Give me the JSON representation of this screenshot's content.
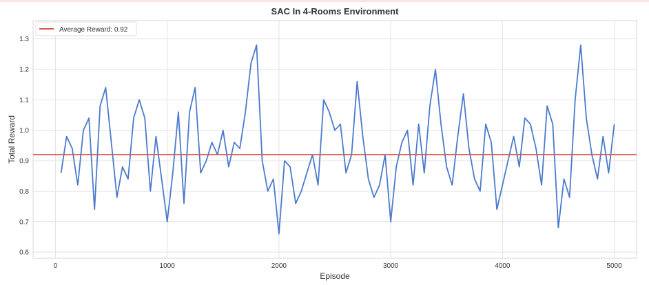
{
  "chart_data": {
    "type": "line",
    "title": "SAC In 4-Rooms Environment",
    "xlabel": "Episode",
    "ylabel": "Total Reward",
    "xlim": [
      -200,
      5200
    ],
    "ylim": [
      0.58,
      1.36
    ],
    "xticks": [
      0,
      1000,
      2000,
      3000,
      4000,
      5000
    ],
    "yticks": [
      0.6,
      0.7,
      0.8,
      0.9,
      1.0,
      1.1,
      1.2,
      1.3
    ],
    "grid": true,
    "legend_position": "top-left",
    "average_line": {
      "label": "Average Reward: 0.92",
      "value": 0.92,
      "color": "#d9534f"
    },
    "series": [
      {
        "color": "#4a7acd",
        "x": [
          50,
          100,
          150,
          200,
          250,
          300,
          350,
          400,
          450,
          500,
          550,
          600,
          650,
          700,
          750,
          800,
          850,
          900,
          950,
          1000,
          1050,
          1100,
          1150,
          1200,
          1250,
          1300,
          1350,
          1400,
          1450,
          1500,
          1550,
          1600,
          1650,
          1700,
          1750,
          1800,
          1850,
          1900,
          1950,
          2000,
          2050,
          2100,
          2150,
          2200,
          2250,
          2300,
          2350,
          2400,
          2450,
          2500,
          2550,
          2600,
          2650,
          2700,
          2750,
          2800,
          2850,
          2900,
          2950,
          3000,
          3050,
          3100,
          3150,
          3200,
          3250,
          3300,
          3350,
          3400,
          3450,
          3500,
          3550,
          3600,
          3650,
          3700,
          3750,
          3800,
          3850,
          3900,
          3950,
          4000,
          4050,
          4100,
          4150,
          4200,
          4250,
          4300,
          4350,
          4400,
          4450,
          4500,
          4550,
          4600,
          4650,
          4700,
          4750,
          4800,
          4850,
          4900,
          4950,
          5000
        ],
        "y": [
          0.86,
          0.98,
          0.94,
          0.82,
          1.0,
          1.04,
          0.74,
          1.08,
          1.14,
          0.96,
          0.78,
          0.88,
          0.84,
          1.04,
          1.1,
          1.04,
          0.8,
          0.98,
          0.84,
          0.7,
          0.86,
          1.06,
          0.76,
          1.06,
          1.14,
          0.86,
          0.9,
          0.96,
          0.92,
          1.0,
          0.88,
          0.96,
          0.94,
          1.06,
          1.22,
          1.28,
          0.9,
          0.8,
          0.84,
          0.66,
          0.9,
          0.88,
          0.76,
          0.8,
          0.86,
          0.92,
          0.82,
          1.1,
          1.06,
          1.0,
          1.02,
          0.86,
          0.92,
          1.16,
          0.98,
          0.84,
          0.78,
          0.82,
          0.92,
          0.7,
          0.88,
          0.96,
          1.0,
          0.82,
          1.02,
          0.86,
          1.08,
          1.2,
          1.02,
          0.88,
          0.82,
          0.98,
          1.12,
          0.94,
          0.84,
          0.8,
          1.02,
          0.96,
          0.74,
          0.82,
          0.9,
          0.98,
          0.88,
          1.04,
          1.02,
          0.94,
          0.82,
          1.08,
          1.02,
          0.68,
          0.84,
          0.78,
          1.1,
          1.28,
          1.04,
          0.92,
          0.84,
          0.98,
          0.86,
          1.02
        ]
      }
    ]
  }
}
